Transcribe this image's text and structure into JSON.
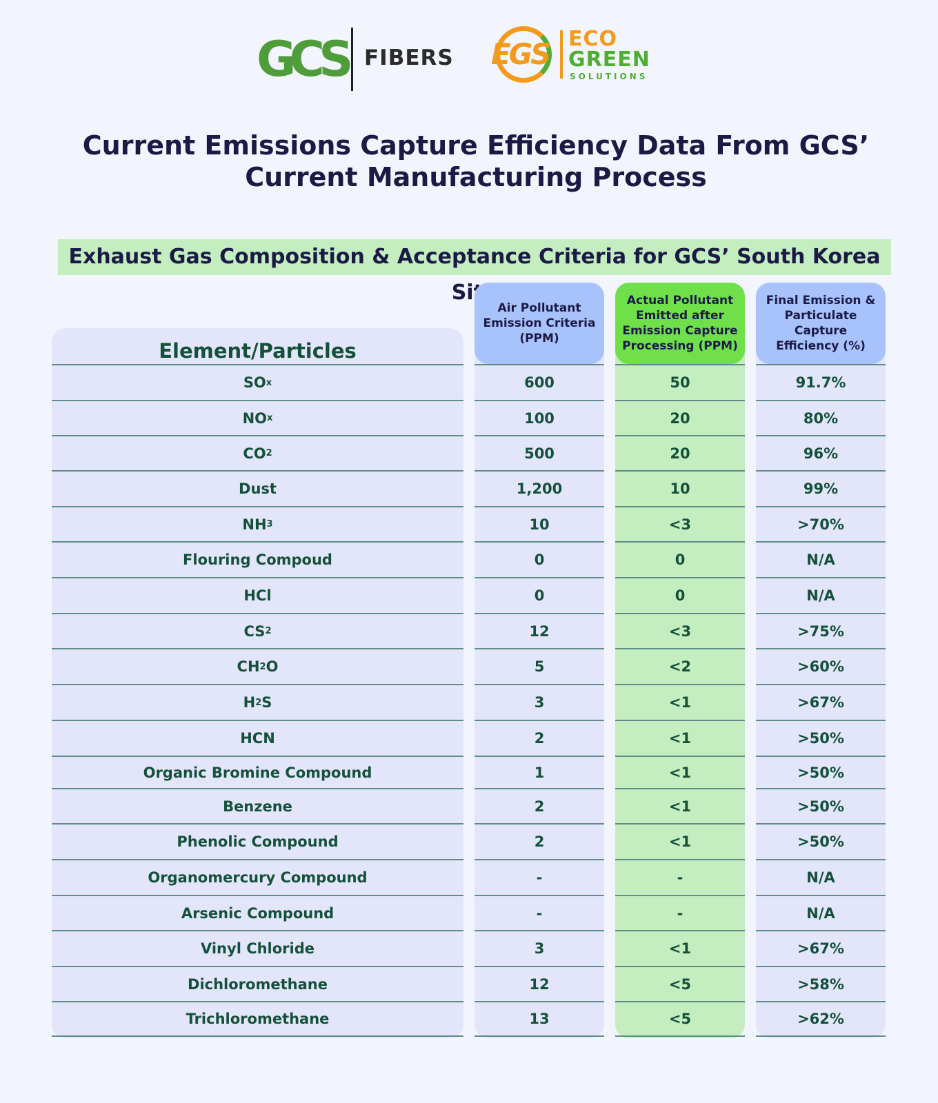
{
  "logos": {
    "gcs_mark": "GCS",
    "gcs_name": "FIBERS",
    "egs_mark": "EGS",
    "egs_line1": "ECO",
    "egs_line2": "GREEN",
    "egs_line3": "SOLUTIONS"
  },
  "title": "Current Emissions Capture Efficiency Data From GCS’ Current Manufacturing Process",
  "banner": "Exhaust Gas Composition & Acceptance Criteria for GCS’ South Korea Site",
  "columns": {
    "element": "Element/Particles",
    "criteria": "Air Pollutant Emission Criteria (PPM)",
    "actual": "Actual Pollutant Emitted after Emission Capture Processing (PPM)",
    "efficiency": "Final Emission & Particulate Capture Efficiency (%)"
  },
  "rows": [
    {
      "element": "SO",
      "sub": "x",
      "tail": "",
      "criteria": "600",
      "actual": "50",
      "efficiency": "91.7%"
    },
    {
      "element": "NO",
      "sub": "x",
      "tail": "",
      "criteria": "100",
      "actual": "20",
      "efficiency": "80%"
    },
    {
      "element": "CO",
      "sub": "2",
      "tail": "",
      "criteria": "500",
      "actual": "20",
      "efficiency": "96%"
    },
    {
      "element": "Dust",
      "sub": "",
      "tail": "",
      "criteria": "1,200",
      "actual": "10",
      "efficiency": "99%"
    },
    {
      "element": "NH",
      "sub": "3",
      "tail": "",
      "criteria": "10",
      "actual": "<3",
      "efficiency": ">70%"
    },
    {
      "element": "Flouring Compoud",
      "sub": "",
      "tail": "",
      "criteria": "0",
      "actual": "0",
      "efficiency": "N/A"
    },
    {
      "element": "HCl",
      "sub": "",
      "tail": "",
      "criteria": "0",
      "actual": "0",
      "efficiency": "N/A"
    },
    {
      "element": "CS",
      "sub": "2",
      "tail": "",
      "criteria": "12",
      "actual": "<3",
      "efficiency": ">75%"
    },
    {
      "element": "CH",
      "sub": "2",
      "tail": "O",
      "criteria": "5",
      "actual": "<2",
      "efficiency": ">60%"
    },
    {
      "element": "H",
      "sub": "2",
      "tail": "S",
      "criteria": "3",
      "actual": "<1",
      "efficiency": ">67%"
    },
    {
      "element": "HCN",
      "sub": "",
      "tail": "",
      "criteria": "2",
      "actual": "<1",
      "efficiency": ">50%"
    },
    {
      "element": "Organic Bromine Compound",
      "sub": "",
      "tail": "",
      "criteria": "1",
      "actual": "<1",
      "efficiency": ">50%"
    },
    {
      "element": "Benzene",
      "sub": "",
      "tail": "",
      "criteria": "2",
      "actual": "<1",
      "efficiency": ">50%"
    },
    {
      "element": "Phenolic Compound",
      "sub": "",
      "tail": "",
      "criteria": "2",
      "actual": "<1",
      "efficiency": ">50%"
    },
    {
      "element": "Organomercury Compound",
      "sub": "",
      "tail": "",
      "criteria": "-",
      "actual": "-",
      "efficiency": "N/A"
    },
    {
      "element": "Arsenic Compound",
      "sub": "",
      "tail": "",
      "criteria": "-",
      "actual": "-",
      "efficiency": "N/A"
    },
    {
      "element": "Vinyl Chloride",
      "sub": "",
      "tail": "",
      "criteria": "3",
      "actual": "<1",
      "efficiency": ">67%"
    },
    {
      "element": "Dichloromethane",
      "sub": "",
      "tail": "",
      "criteria": "12",
      "actual": "<5",
      "efficiency": ">58%"
    },
    {
      "element": "Trichloromethane",
      "sub": "",
      "tail": "",
      "criteria": "13",
      "actual": "<5",
      "efficiency": ">62%"
    }
  ]
}
